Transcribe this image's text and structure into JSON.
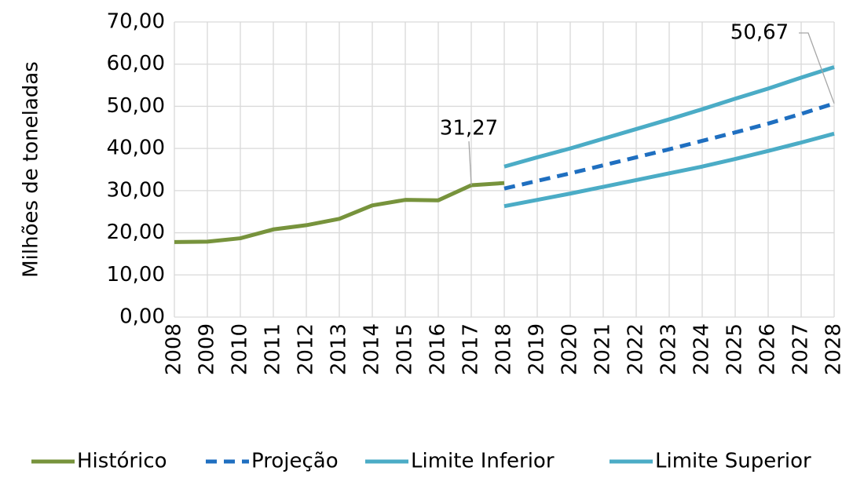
{
  "chart_data": {
    "type": "line",
    "y_label": "Milhões de toneladas",
    "categories": [
      "2008",
      "2009",
      "2010",
      "2011",
      "2012",
      "2013",
      "2014",
      "2015",
      "2016",
      "2017",
      "2018",
      "2019",
      "2020",
      "2021",
      "2022",
      "2023",
      "2024",
      "2025",
      "2026",
      "2027",
      "2028"
    ],
    "series": [
      {
        "name": "Histórico",
        "color": "#77933c",
        "dashed": false,
        "values": [
          17.8,
          17.9,
          18.7,
          20.8,
          21.8,
          23.3,
          26.5,
          27.8,
          27.7,
          31.27,
          31.8,
          null,
          null,
          null,
          null,
          null,
          null,
          null,
          null,
          null,
          null
        ],
        "value_labels": [
          null,
          null,
          null,
          null,
          null,
          null,
          null,
          null,
          null,
          "31,27",
          null,
          null,
          null,
          null,
          null,
          null,
          null,
          null,
          null,
          null,
          null
        ]
      },
      {
        "name": "Projeção",
        "color": "#1f6fc0",
        "dashed": true,
        "values": [
          null,
          null,
          null,
          null,
          null,
          null,
          null,
          null,
          null,
          null,
          30.5,
          32.3,
          34.1,
          36.0,
          37.9,
          39.8,
          41.8,
          43.8,
          45.9,
          48.2,
          50.67
        ],
        "value_labels": [
          null,
          null,
          null,
          null,
          null,
          null,
          null,
          null,
          null,
          null,
          null,
          null,
          null,
          null,
          null,
          null,
          null,
          null,
          null,
          null,
          "50,67"
        ]
      },
      {
        "name": "Limite Inferior",
        "color": "#4bacc6",
        "dashed": false,
        "values": [
          null,
          null,
          null,
          null,
          null,
          null,
          null,
          null,
          null,
          null,
          26.3,
          27.8,
          29.3,
          30.9,
          32.5,
          34.1,
          35.7,
          37.5,
          39.4,
          41.4,
          43.5
        ]
      },
      {
        "name": "Limite Superior",
        "color": "#4bacc6",
        "dashed": false,
        "values": [
          null,
          null,
          null,
          null,
          null,
          null,
          null,
          null,
          null,
          null,
          35.7,
          37.9,
          40.0,
          42.3,
          44.6,
          46.9,
          49.3,
          51.8,
          54.2,
          56.8,
          59.3
        ]
      }
    ],
    "ylim": [
      0,
      70
    ],
    "yticks": [
      {
        "value": 0,
        "label": "0,00"
      },
      {
        "value": 10,
        "label": "10,00"
      },
      {
        "value": 20,
        "label": "20,00"
      },
      {
        "value": 30,
        "label": "30,00"
      },
      {
        "value": 40,
        "label": "40,00"
      },
      {
        "value": 50,
        "label": "50,00"
      },
      {
        "value": 60,
        "label": "60,00"
      },
      {
        "value": 70,
        "label": "70,00"
      }
    ],
    "grid": true,
    "legend": "bottom"
  }
}
